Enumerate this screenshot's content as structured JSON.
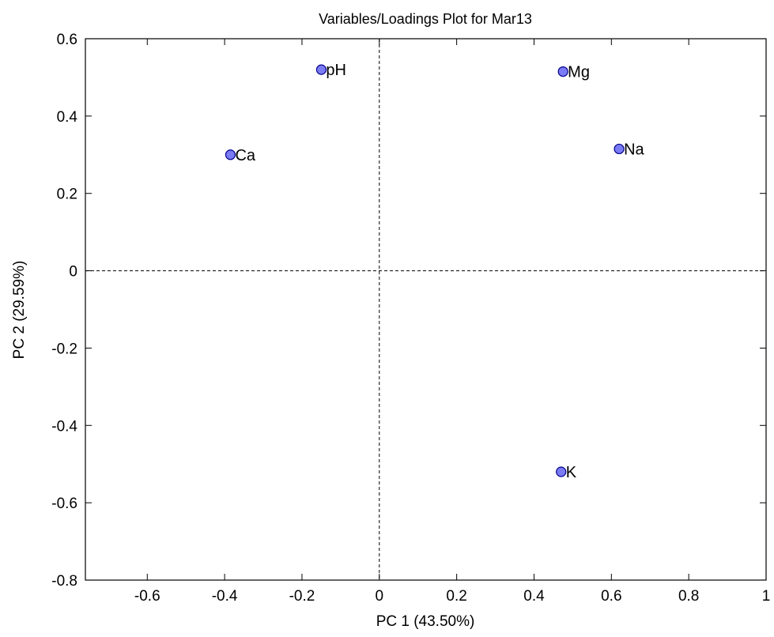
{
  "chart_data": {
    "type": "scatter",
    "title": "Variables/Loadings Plot for Mar13",
    "xlabel": "PC 1 (43.50%)",
    "ylabel": "PC 2 (29.59%)",
    "xlim": [
      -0.76,
      1.0
    ],
    "ylim": [
      -0.8,
      0.6
    ],
    "xticks": [
      -0.6,
      -0.4,
      -0.2,
      0,
      0.2,
      0.4,
      0.6,
      0.8,
      1
    ],
    "yticks": [
      -0.8,
      -0.6,
      -0.4,
      -0.2,
      0,
      0.2,
      0.4,
      0.6
    ],
    "xtick_labels": [
      "-0.6",
      "-0.4",
      "-0.2",
      "0",
      "0.2",
      "0.4",
      "0.6",
      "0.8",
      "1"
    ],
    "ytick_labels": [
      "-0.8",
      "-0.6",
      "-0.4",
      "-0.2",
      "0",
      "0.2",
      "0.4",
      "0.6"
    ],
    "grid": false,
    "reference_lines": {
      "x": 0,
      "y": 0,
      "style": "dashed"
    },
    "marker_color": "#7b7bf5",
    "marker_edge_color": "#00008b",
    "points": [
      {
        "label": "pH",
        "x": -0.15,
        "y": 0.52
      },
      {
        "label": "Mg",
        "x": 0.475,
        "y": 0.515
      },
      {
        "label": "Ca",
        "x": -0.385,
        "y": 0.3
      },
      {
        "label": "Na",
        "x": 0.62,
        "y": 0.315
      },
      {
        "label": "K",
        "x": 0.47,
        "y": -0.52
      }
    ]
  }
}
